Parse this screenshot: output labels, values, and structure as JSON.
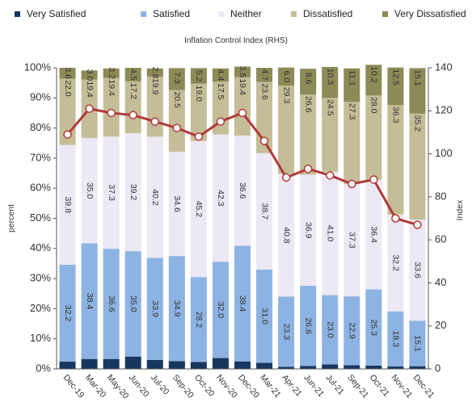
{
  "legend": [
    {
      "name": "Very Satisfied",
      "color": "#17375e"
    },
    {
      "name": "Satisfied",
      "color": "#8db3e2"
    },
    {
      "name": "Neither",
      "color": "#ece8f4"
    },
    {
      "name": "Dissatisfied",
      "color": "#c4bd97"
    },
    {
      "name": "Very Dissatisfied",
      "color": "#8c8a56"
    }
  ],
  "subtitle": "Inflation Control Index (RHS)",
  "chart_data": {
    "type": "bar",
    "stacked": true,
    "categories": [
      "Dec-19",
      "Mar-20",
      "May-20",
      "Jun-20",
      "Jul-20",
      "Sep-20",
      "Oct-20",
      "Nov-20",
      "Dec-20",
      "Mar-21",
      "Apr-21",
      "Jun-21",
      "Jul-21",
      "Sep-21",
      "Oct-21",
      "Nov-21",
      "Dec-21"
    ],
    "category_labels": [
      "Dec-19",
      "Mar-20",
      "May-20",
      "Jun-20",
      "Jul-20",
      "Sep-20",
      "Oct-20",
      "Nov-20",
      "Dec-20",
      "Mar-21",
      "Apr-21",
      "Jun-21",
      "Jul-21",
      "Sep-21",
      "Oct-21",
      "Nov-21",
      "Dec-21"
    ],
    "series": [
      {
        "name": "Very Satisfied",
        "color": "#17375e",
        "values": [
          2.4,
          3.3,
          3.3,
          4.1,
          3.0,
          2.6,
          2.3,
          3.6,
          2.5,
          2.0,
          0.7,
          1.0,
          1.5,
          1.2,
          1.1,
          0.8,
          0.9
        ]
      },
      {
        "name": "Satisfied",
        "color": "#8db3e2",
        "values": [
          32.2,
          38.4,
          36.6,
          35.0,
          33.9,
          34.9,
          28.2,
          32.0,
          38.4,
          31.0,
          23.3,
          26.6,
          23.0,
          22.9,
          25.3,
          18.3,
          15.1
        ]
      },
      {
        "name": "Neither",
        "color": "#ece8f4",
        "values": [
          39.8,
          35.0,
          37.3,
          39.2,
          40.2,
          34.6,
          45.2,
          42.3,
          36.6,
          38.7,
          40.8,
          36.9,
          41.0,
          37.3,
          36.4,
          32.2,
          33.6
        ]
      },
      {
        "name": "Dissatisfied",
        "color": "#c4bd97",
        "values": [
          22.0,
          19.4,
          19.4,
          17.2,
          19.9,
          20.5,
          19.0,
          17.5,
          19.4,
          23.6,
          29.3,
          26.6,
          24.5,
          27.3,
          28.0,
          36.3,
          35.2
        ]
      },
      {
        "name": "Very Dissatisfied",
        "color": "#8c8a56",
        "values": [
          3.6,
          3.0,
          3.2,
          4.5,
          2.8,
          7.3,
          5.2,
          4.4,
          3.5,
          4.7,
          6.0,
          8.6,
          10.3,
          11.1,
          10.2,
          12.5,
          15.1
        ]
      }
    ],
    "segment_labels": [
      [
        "32.2",
        "38.4",
        "36.6",
        "35.0",
        "33.9",
        "34.9",
        "28.2",
        "32.0",
        "38.4",
        "31.0",
        "23.3",
        "26.6",
        "23.0",
        "22.9",
        "25.3",
        "18.3",
        "15.1"
      ],
      [
        "39.8",
        "35.0",
        "37.3",
        "39.2",
        "40.2",
        "34.6",
        "45.2",
        "42.3",
        "36.6",
        "38.7",
        "40.8",
        "36.9",
        "41.0",
        "37.3",
        "36.4",
        "32.2",
        "33.6"
      ],
      [
        "22.0",
        "19.4",
        "19.4",
        "17.2",
        "19.9",
        "20.5",
        "19.0",
        "17.5",
        "19.4",
        "23.6",
        "29.3",
        "26.6",
        "24.5",
        "27.3",
        "28.0",
        "36.3",
        "35.2"
      ],
      [
        "3.6",
        "3.0",
        "3.2",
        "4.5",
        "2.8",
        "7.3",
        "5.2",
        "4.4",
        "3.5",
        "4.7",
        "6.0",
        "8.6",
        "10.3",
        "11.1",
        "10.2",
        "12.5",
        "15.1"
      ]
    ],
    "index_line": {
      "name": "Inflation Control Index (RHS)",
      "color": "#b03a3a",
      "values": [
        109,
        121,
        119,
        118,
        115,
        112,
        108,
        115,
        119,
        106,
        89,
        93,
        90,
        86,
        88,
        70,
        67
      ]
    },
    "ylabel": "percent",
    "y2label": "Index",
    "ylim": [
      0,
      100
    ],
    "y2lim": [
      0,
      140
    ],
    "yticks": [
      "0%",
      "10%",
      "20%",
      "30%",
      "40%",
      "50%",
      "60%",
      "70%",
      "80%",
      "90%",
      "100%"
    ],
    "y2ticks": [
      "0",
      "20",
      "40",
      "60",
      "80",
      "100",
      "120",
      "140"
    ],
    "grid": false
  }
}
